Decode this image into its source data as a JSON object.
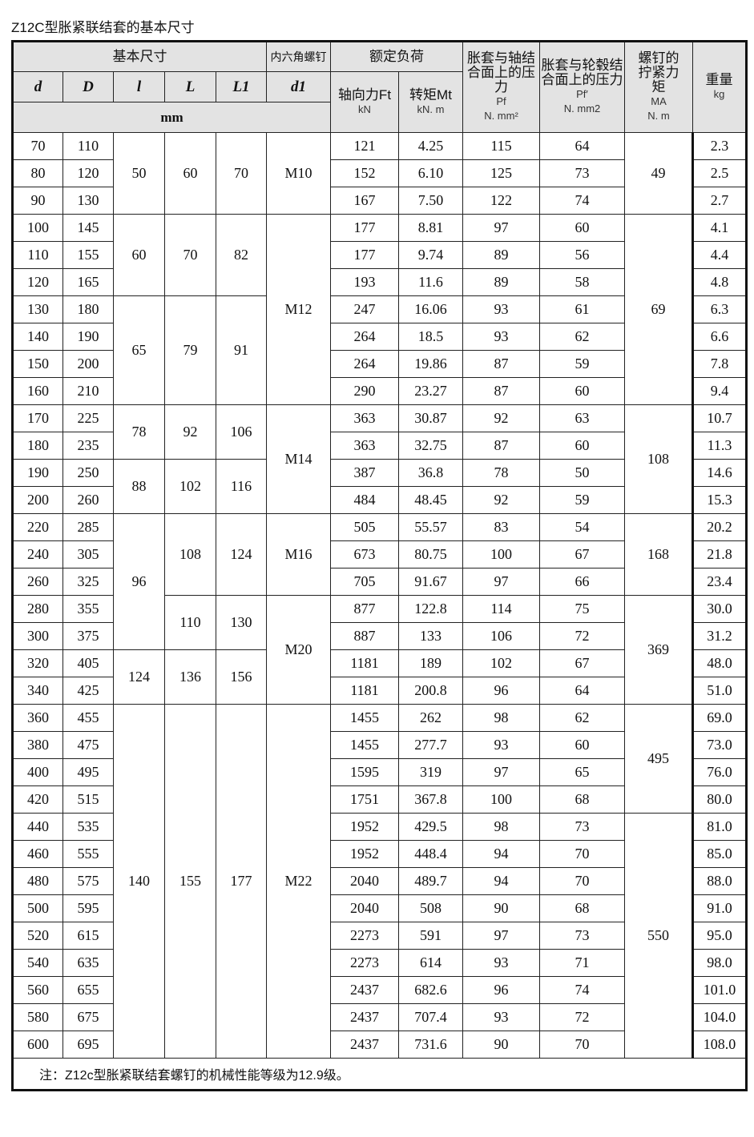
{
  "title": "Z12C型胀紧联结套的基本尺寸",
  "header": {
    "basic_dims": "基本尺寸",
    "screw": "内六角螺钉",
    "rated_load": "额定负荷",
    "shaft_pressure": "胀套与轴结合面上的压力",
    "shaft_pressure_sym": "Pf",
    "shaft_pressure_unit": "N. mm²",
    "hub_pressure": "胀套与轮毂结合面上的压力",
    "hub_pressure_sym": "Pf′",
    "hub_pressure_unit": "N. mm2",
    "torque_tight": "螺钉的拧紧力矩",
    "torque_tight_sym": "MA",
    "torque_tight_unit": "N. m",
    "weight": "重量",
    "weight_unit": "kg",
    "d": "d",
    "D": "D",
    "l": "l",
    "L": "L",
    "L1": "L1",
    "d1": "d1",
    "mm": "mm",
    "axial": "轴向力Ft",
    "axial_unit": "kN",
    "torque": "转矩Mt",
    "torque_unit": "kN. m"
  },
  "rows": [
    [
      "70",
      "110",
      "121",
      "4.25",
      "115",
      "64",
      "2.3"
    ],
    [
      "80",
      "120",
      "152",
      "6.10",
      "125",
      "73",
      "2.5"
    ],
    [
      "90",
      "130",
      "167",
      "7.50",
      "122",
      "74",
      "2.7"
    ],
    [
      "100",
      "145",
      "177",
      "8.81",
      "97",
      "60",
      "4.1"
    ],
    [
      "110",
      "155",
      "177",
      "9.74",
      "89",
      "56",
      "4.4"
    ],
    [
      "120",
      "165",
      "193",
      "11.6",
      "89",
      "58",
      "4.8"
    ],
    [
      "130",
      "180",
      "247",
      "16.06",
      "93",
      "61",
      "6.3"
    ],
    [
      "140",
      "190",
      "264",
      "18.5",
      "93",
      "62",
      "6.6"
    ],
    [
      "150",
      "200",
      "264",
      "19.86",
      "87",
      "59",
      "7.8"
    ],
    [
      "160",
      "210",
      "290",
      "23.27",
      "87",
      "60",
      "9.4"
    ],
    [
      "170",
      "225",
      "363",
      "30.87",
      "92",
      "63",
      "10.7"
    ],
    [
      "180",
      "235",
      "363",
      "32.75",
      "87",
      "60",
      "11.3"
    ],
    [
      "190",
      "250",
      "387",
      "36.8",
      "78",
      "50",
      "14.6"
    ],
    [
      "200",
      "260",
      "484",
      "48.45",
      "92",
      "59",
      "15.3"
    ],
    [
      "220",
      "285",
      "505",
      "55.57",
      "83",
      "54",
      "20.2"
    ],
    [
      "240",
      "305",
      "673",
      "80.75",
      "100",
      "67",
      "21.8"
    ],
    [
      "260",
      "325",
      "705",
      "91.67",
      "97",
      "66",
      "23.4"
    ],
    [
      "280",
      "355",
      "877",
      "122.8",
      "114",
      "75",
      "30.0"
    ],
    [
      "300",
      "375",
      "887",
      "133",
      "106",
      "72",
      "31.2"
    ],
    [
      "320",
      "405",
      "1181",
      "189",
      "102",
      "67",
      "48.0"
    ],
    [
      "340",
      "425",
      "1181",
      "200.8",
      "96",
      "64",
      "51.0"
    ],
    [
      "360",
      "455",
      "1455",
      "262",
      "98",
      "62",
      "69.0"
    ],
    [
      "380",
      "475",
      "1455",
      "277.7",
      "93",
      "60",
      "73.0"
    ],
    [
      "400",
      "495",
      "1595",
      "319",
      "97",
      "65",
      "76.0"
    ],
    [
      "420",
      "515",
      "1751",
      "367.8",
      "100",
      "68",
      "80.0"
    ],
    [
      "440",
      "535",
      "1952",
      "429.5",
      "98",
      "73",
      "81.0"
    ],
    [
      "460",
      "555",
      "1952",
      "448.4",
      "94",
      "70",
      "85.0"
    ],
    [
      "480",
      "575",
      "2040",
      "489.7",
      "94",
      "70",
      "88.0"
    ],
    [
      "500",
      "595",
      "2040",
      "508",
      "90",
      "68",
      "91.0"
    ],
    [
      "520",
      "615",
      "2273",
      "591",
      "97",
      "73",
      "95.0"
    ],
    [
      "540",
      "635",
      "2273",
      "614",
      "93",
      "71",
      "98.0"
    ],
    [
      "560",
      "655",
      "2437",
      "682.6",
      "96",
      "74",
      "101.0"
    ],
    [
      "580",
      "675",
      "2437",
      "707.4",
      "93",
      "72",
      "104.0"
    ],
    [
      "600",
      "695",
      "2437",
      "731.6",
      "90",
      "70",
      "108.0"
    ]
  ],
  "merged": {
    "l": [
      [
        "50",
        3
      ],
      [
        "60",
        3
      ],
      [
        "65",
        4
      ],
      [
        "78",
        2
      ],
      [
        "88",
        2
      ],
      [
        "96",
        5
      ],
      [
        "124",
        2
      ],
      [
        "140",
        13
      ]
    ],
    "L": [
      [
        "60",
        3
      ],
      [
        "70",
        3
      ],
      [
        "79",
        4
      ],
      [
        "92",
        2
      ],
      [
        "102",
        2
      ],
      [
        "108",
        3
      ],
      [
        "110",
        2
      ],
      [
        "136",
        2
      ],
      [
        "155",
        13
      ]
    ],
    "L1": [
      [
        "70",
        3
      ],
      [
        "82",
        3
      ],
      [
        "91",
        4
      ],
      [
        "106",
        2
      ],
      [
        "116",
        2
      ],
      [
        "124",
        3
      ],
      [
        "130",
        2
      ],
      [
        "156",
        2
      ],
      [
        "177",
        13
      ]
    ],
    "d1": [
      [
        "M10",
        3
      ],
      [
        "M12",
        7
      ],
      [
        "M14",
        4
      ],
      [
        "M16",
        3
      ],
      [
        "M20",
        4
      ],
      [
        "M22",
        13
      ]
    ],
    "MA": [
      [
        "49",
        3
      ],
      [
        "69",
        7
      ],
      [
        "108",
        4
      ],
      [
        "168",
        3
      ],
      [
        "369",
        4
      ],
      [
        "495",
        4
      ],
      [
        "550",
        9
      ]
    ]
  },
  "note": "注：Z12c型胀紧联结套螺钉的机械性能等级为12.9级。"
}
